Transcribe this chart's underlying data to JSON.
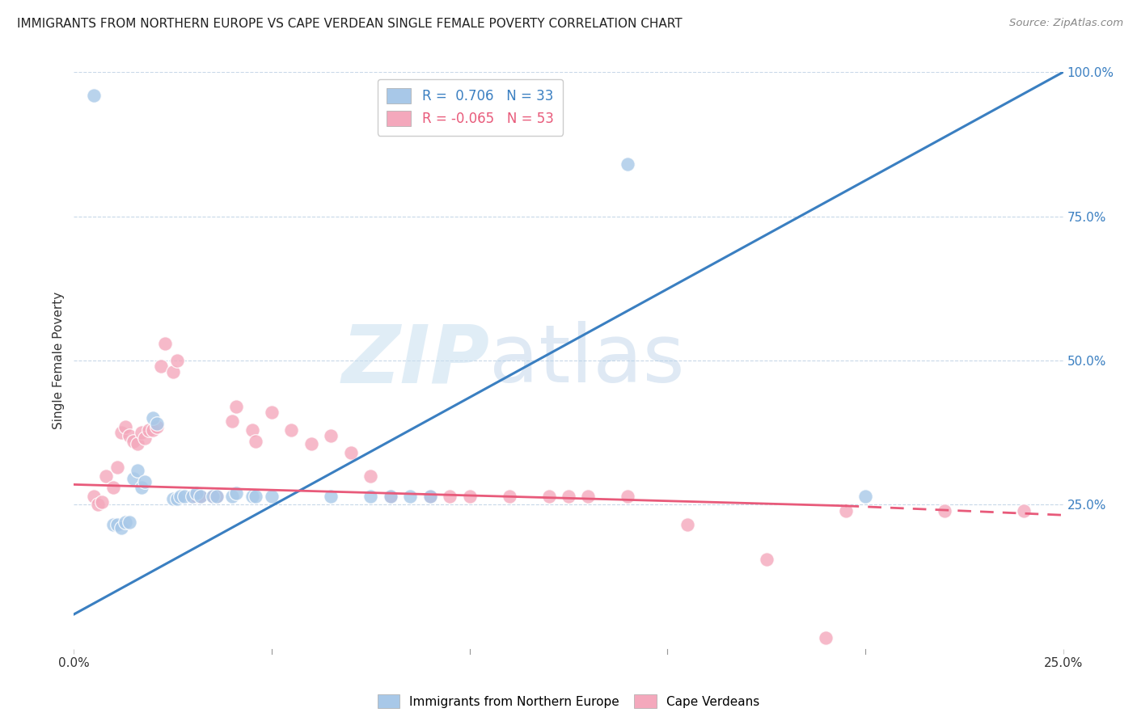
{
  "title": "IMMIGRANTS FROM NORTHERN EUROPE VS CAPE VERDEAN SINGLE FEMALE POVERTY CORRELATION CHART",
  "source": "Source: ZipAtlas.com",
  "ylabel": "Single Female Poverty",
  "right_yticks": [
    "100.0%",
    "75.0%",
    "50.0%",
    "25.0%"
  ],
  "right_ytick_vals": [
    1.0,
    0.75,
    0.5,
    0.25
  ],
  "blue_color": "#a8c8e8",
  "pink_color": "#f4a8bc",
  "blue_line_color": "#3a7fc1",
  "pink_line_color": "#e85a7a",
  "watermark_zip": "ZIP",
  "watermark_atlas": "atlas",
  "blue_dots": [
    [
      0.005,
      0.96
    ],
    [
      0.01,
      0.215
    ],
    [
      0.011,
      0.215
    ],
    [
      0.012,
      0.21
    ],
    [
      0.013,
      0.22
    ],
    [
      0.014,
      0.22
    ],
    [
      0.015,
      0.295
    ],
    [
      0.016,
      0.31
    ],
    [
      0.017,
      0.28
    ],
    [
      0.018,
      0.29
    ],
    [
      0.02,
      0.4
    ],
    [
      0.021,
      0.39
    ],
    [
      0.025,
      0.26
    ],
    [
      0.026,
      0.26
    ],
    [
      0.027,
      0.265
    ],
    [
      0.028,
      0.265
    ],
    [
      0.03,
      0.265
    ],
    [
      0.031,
      0.27
    ],
    [
      0.032,
      0.265
    ],
    [
      0.035,
      0.265
    ],
    [
      0.036,
      0.265
    ],
    [
      0.04,
      0.265
    ],
    [
      0.041,
      0.27
    ],
    [
      0.045,
      0.265
    ],
    [
      0.046,
      0.265
    ],
    [
      0.05,
      0.265
    ],
    [
      0.065,
      0.265
    ],
    [
      0.075,
      0.265
    ],
    [
      0.08,
      0.265
    ],
    [
      0.085,
      0.265
    ],
    [
      0.09,
      0.265
    ],
    [
      0.14,
      0.84
    ],
    [
      0.2,
      0.265
    ]
  ],
  "pink_dots": [
    [
      0.005,
      0.265
    ],
    [
      0.006,
      0.25
    ],
    [
      0.007,
      0.255
    ],
    [
      0.008,
      0.3
    ],
    [
      0.01,
      0.28
    ],
    [
      0.011,
      0.315
    ],
    [
      0.012,
      0.375
    ],
    [
      0.013,
      0.385
    ],
    [
      0.014,
      0.37
    ],
    [
      0.015,
      0.36
    ],
    [
      0.016,
      0.355
    ],
    [
      0.017,
      0.375
    ],
    [
      0.018,
      0.365
    ],
    [
      0.019,
      0.38
    ],
    [
      0.02,
      0.38
    ],
    [
      0.021,
      0.385
    ],
    [
      0.022,
      0.49
    ],
    [
      0.023,
      0.53
    ],
    [
      0.025,
      0.48
    ],
    [
      0.026,
      0.5
    ],
    [
      0.03,
      0.265
    ],
    [
      0.031,
      0.265
    ],
    [
      0.032,
      0.265
    ],
    [
      0.035,
      0.265
    ],
    [
      0.036,
      0.265
    ],
    [
      0.04,
      0.395
    ],
    [
      0.041,
      0.42
    ],
    [
      0.045,
      0.38
    ],
    [
      0.046,
      0.36
    ],
    [
      0.05,
      0.41
    ],
    [
      0.055,
      0.38
    ],
    [
      0.06,
      0.355
    ],
    [
      0.065,
      0.37
    ],
    [
      0.07,
      0.34
    ],
    [
      0.075,
      0.3
    ],
    [
      0.08,
      0.265
    ],
    [
      0.09,
      0.265
    ],
    [
      0.095,
      0.265
    ],
    [
      0.1,
      0.265
    ],
    [
      0.11,
      0.265
    ],
    [
      0.12,
      0.265
    ],
    [
      0.125,
      0.265
    ],
    [
      0.13,
      0.265
    ],
    [
      0.14,
      0.265
    ],
    [
      0.155,
      0.215
    ],
    [
      0.175,
      0.155
    ],
    [
      0.19,
      0.02
    ],
    [
      0.195,
      0.24
    ],
    [
      0.22,
      0.24
    ],
    [
      0.24,
      0.24
    ]
  ],
  "xlim": [
    0.0,
    0.25
  ],
  "ylim": [
    0.0,
    1.0
  ],
  "blue_line_x0": 0.0,
  "blue_line_x1": 0.25,
  "blue_line_y0": 0.06,
  "blue_line_y1": 1.0,
  "pink_line_x0": 0.0,
  "pink_line_x1": 0.195,
  "pink_line_x1_dashed": 0.25,
  "pink_line_y0": 0.285,
  "pink_line_y1": 0.248,
  "pink_line_y1_dashed": 0.232
}
